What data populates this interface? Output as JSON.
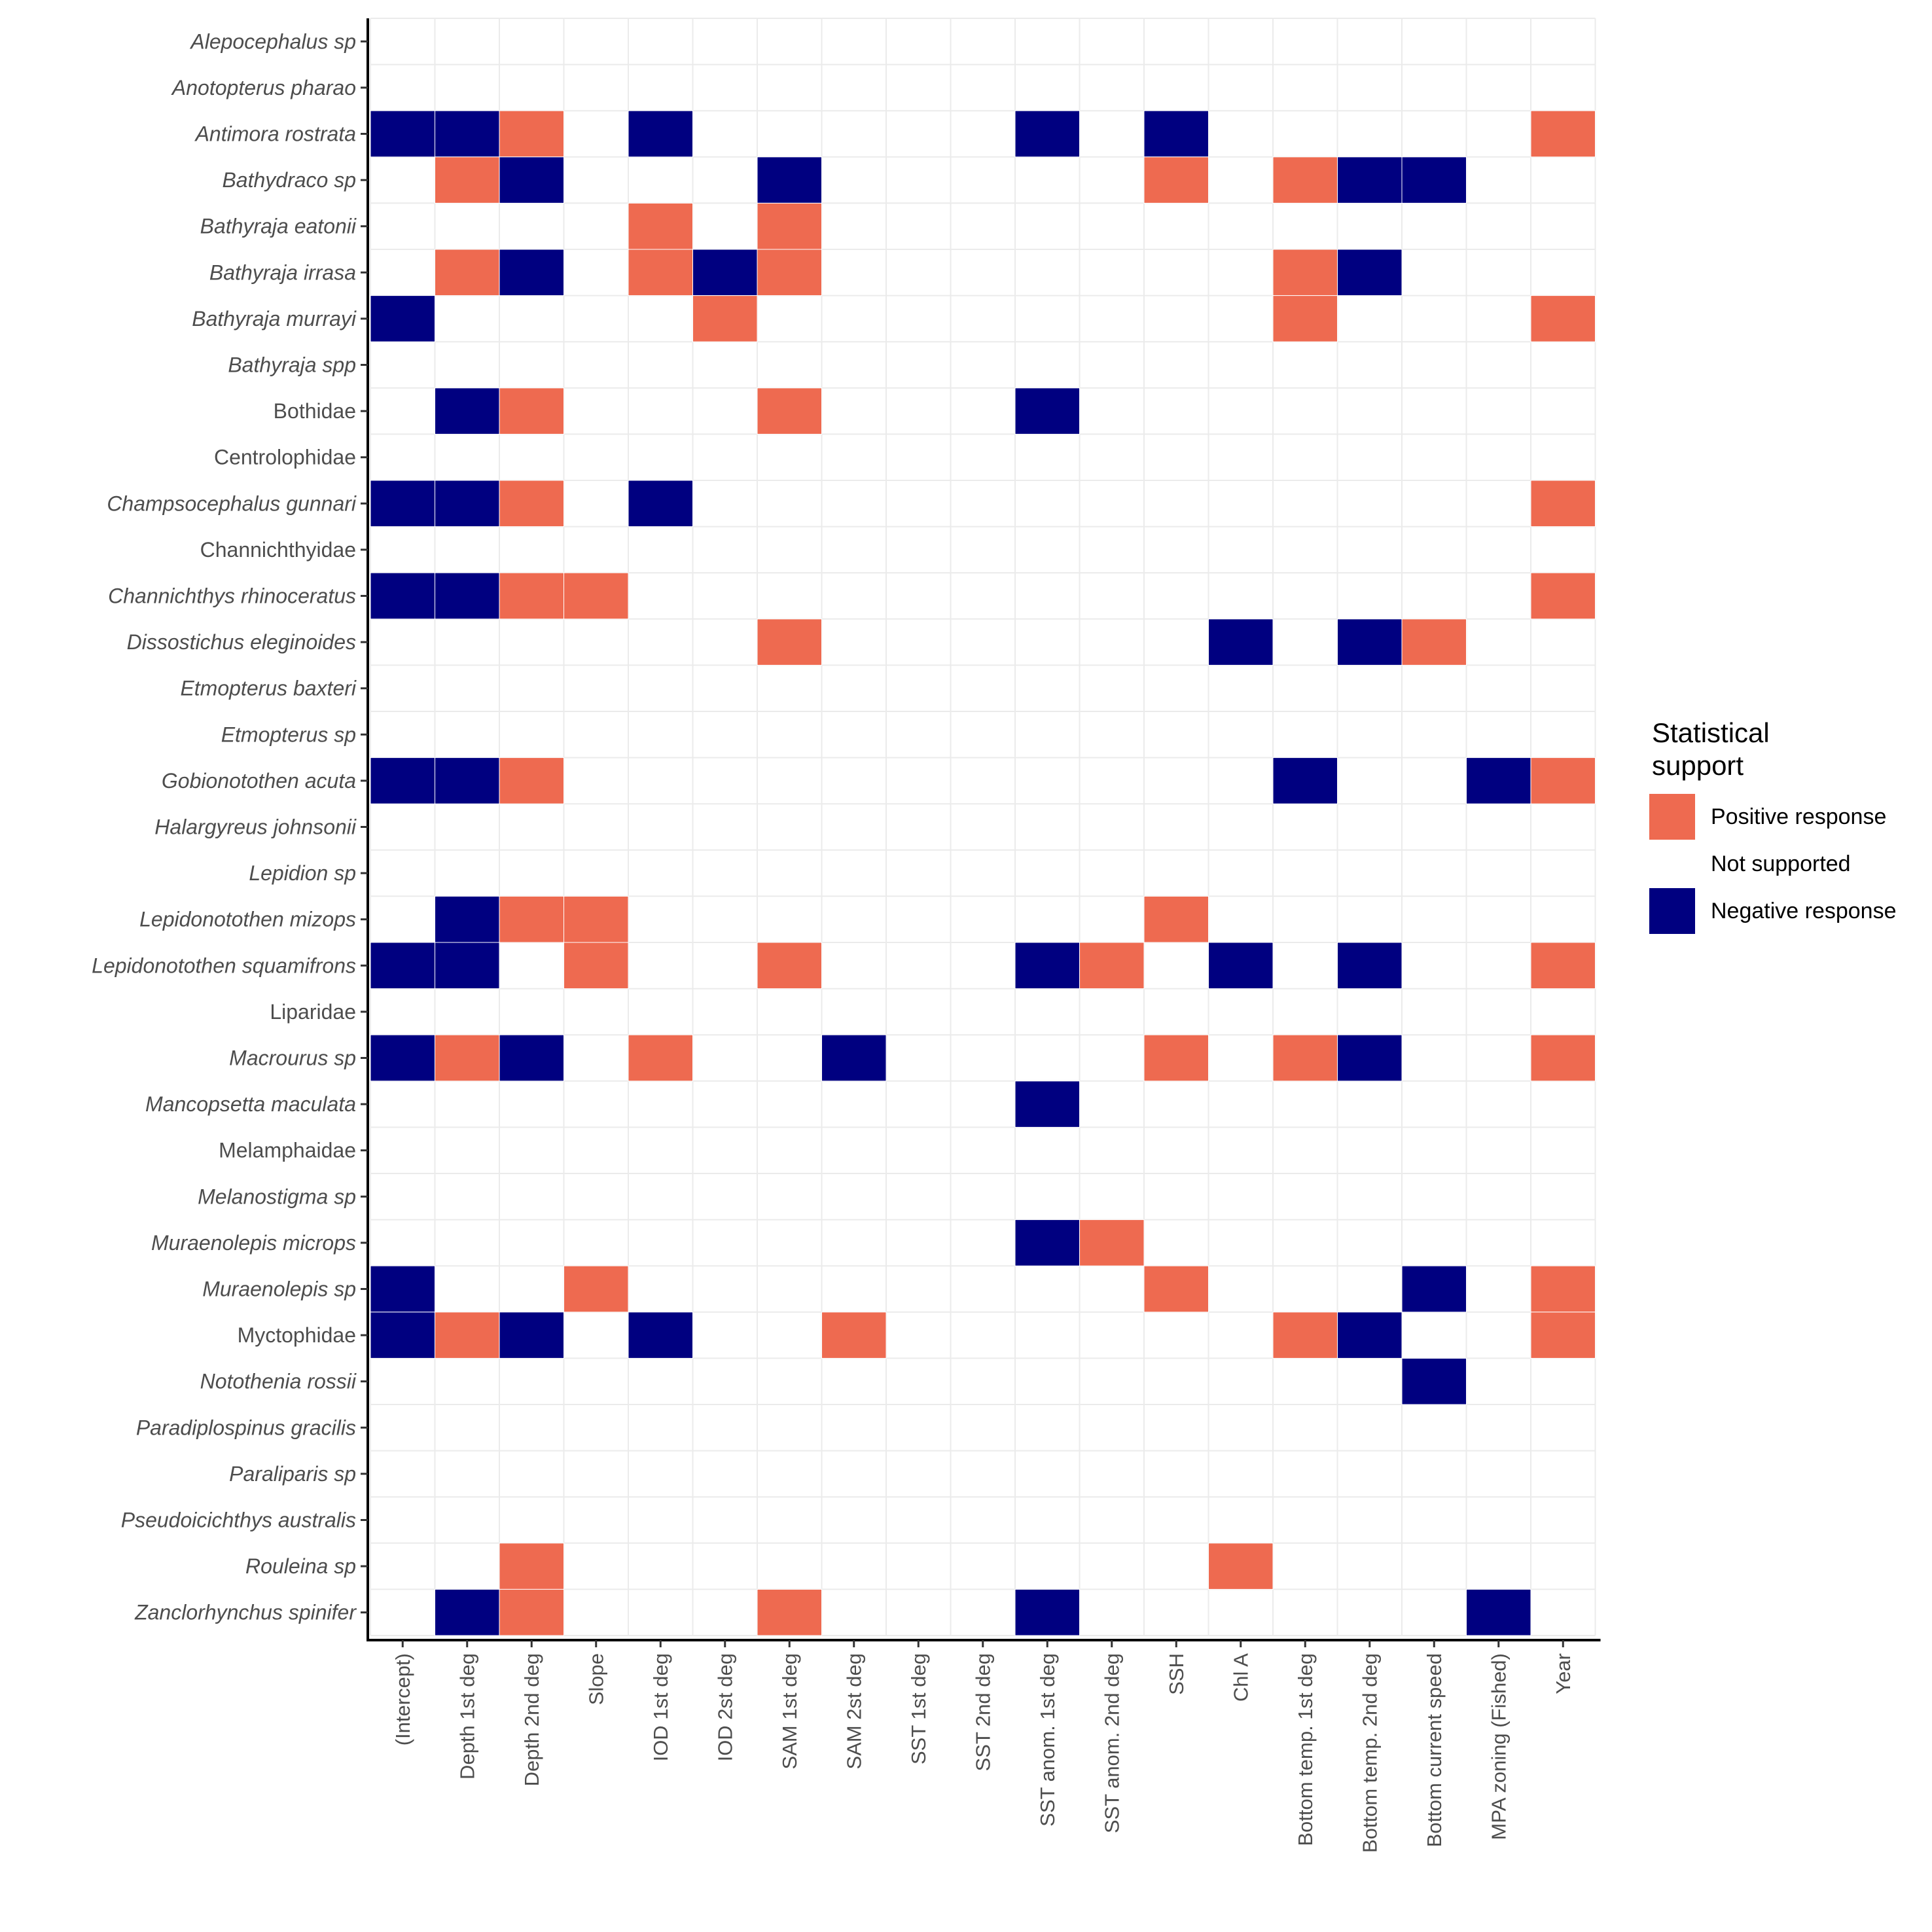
{
  "chart_data": {
    "type": "heatmap",
    "title": "",
    "xlabel": "",
    "ylabel": "",
    "x_categories": [
      "(Intercept)",
      "Depth 1st deg",
      "Depth 2nd deg",
      "Slope",
      "IOD 1st deg",
      "IOD 2st deg",
      "SAM 1st deg",
      "SAM 2st deg",
      "SST 1st deg",
      "SST 2nd deg",
      "SST anom. 1st deg",
      "SST anom. 2nd deg",
      "SSH",
      "Chl A",
      "Bottom temp. 1st deg",
      "Bottom temp. 2nd deg",
      "Bottom current speed",
      "MPA zoning (Fished)",
      "Year"
    ],
    "y_categories": [
      {
        "name": "Alepocephalus sp",
        "italic": true
      },
      {
        "name": "Anotopterus pharao",
        "italic": true
      },
      {
        "name": "Antimora rostrata",
        "italic": true
      },
      {
        "name": "Bathydraco sp",
        "italic": true
      },
      {
        "name": "Bathyraja eatonii",
        "italic": true
      },
      {
        "name": "Bathyraja irrasa",
        "italic": true
      },
      {
        "name": "Bathyraja murrayi",
        "italic": true
      },
      {
        "name": "Bathyraja spp",
        "italic": true
      },
      {
        "name": "Bothidae",
        "italic": false
      },
      {
        "name": "Centrolophidae",
        "italic": false
      },
      {
        "name": "Champsocephalus gunnari",
        "italic": true
      },
      {
        "name": "Channichthyidae",
        "italic": false
      },
      {
        "name": "Channichthys rhinoceratus",
        "italic": true
      },
      {
        "name": "Dissostichus eleginoides",
        "italic": true
      },
      {
        "name": "Etmopterus baxteri",
        "italic": true
      },
      {
        "name": "Etmopterus sp",
        "italic": true
      },
      {
        "name": "Gobionotothen acuta",
        "italic": true
      },
      {
        "name": "Halargyreus johnsonii",
        "italic": true
      },
      {
        "name": "Lepidion sp",
        "italic": true
      },
      {
        "name": "Lepidonotothen mizops",
        "italic": true
      },
      {
        "name": "Lepidonotothen squamifrons",
        "italic": true
      },
      {
        "name": "Liparidae",
        "italic": false
      },
      {
        "name": "Macrourus sp",
        "italic": true
      },
      {
        "name": "Mancopsetta maculata",
        "italic": true
      },
      {
        "name": "Melamphaidae",
        "italic": false
      },
      {
        "name": "Melanostigma sp",
        "italic": true
      },
      {
        "name": "Muraenolepis microps",
        "italic": true
      },
      {
        "name": "Muraenolepis sp",
        "italic": true
      },
      {
        "name": "Myctophidae",
        "italic": false
      },
      {
        "name": "Notothenia rossii",
        "italic": true
      },
      {
        "name": "Paradiplospinus gracilis",
        "italic": true
      },
      {
        "name": "Paraliparis sp",
        "italic": true
      },
      {
        "name": "Pseudoicichthys australis",
        "italic": true
      },
      {
        "name": "Rouleina sp",
        "italic": true
      },
      {
        "name": "Zanclorhynchus spinifer",
        "italic": true
      }
    ],
    "value_codes": {
      "1": "Positive response",
      "0": "Not supported",
      "-1": "Negative response"
    },
    "values": [
      [
        0,
        0,
        0,
        0,
        0,
        0,
        0,
        0,
        0,
        0,
        0,
        0,
        0,
        0,
        0,
        0,
        0,
        0,
        0
      ],
      [
        0,
        0,
        0,
        0,
        0,
        0,
        0,
        0,
        0,
        0,
        0,
        0,
        0,
        0,
        0,
        0,
        0,
        0,
        0
      ],
      [
        -1,
        -1,
        1,
        0,
        -1,
        0,
        0,
        0,
        0,
        0,
        -1,
        0,
        -1,
        0,
        0,
        0,
        0,
        0,
        1
      ],
      [
        0,
        1,
        -1,
        0,
        0,
        0,
        -1,
        0,
        0,
        0,
        0,
        0,
        1,
        0,
        1,
        -1,
        -1,
        0,
        0
      ],
      [
        0,
        0,
        0,
        0,
        1,
        0,
        1,
        0,
        0,
        0,
        0,
        0,
        0,
        0,
        0,
        0,
        0,
        0,
        0
      ],
      [
        0,
        1,
        -1,
        0,
        1,
        -1,
        1,
        0,
        0,
        0,
        0,
        0,
        0,
        0,
        1,
        -1,
        0,
        0,
        0
      ],
      [
        -1,
        0,
        0,
        0,
        0,
        1,
        0,
        0,
        0,
        0,
        0,
        0,
        0,
        0,
        1,
        0,
        0,
        0,
        1
      ],
      [
        0,
        0,
        0,
        0,
        0,
        0,
        0,
        0,
        0,
        0,
        0,
        0,
        0,
        0,
        0,
        0,
        0,
        0,
        0
      ],
      [
        0,
        -1,
        1,
        0,
        0,
        0,
        1,
        0,
        0,
        0,
        -1,
        0,
        0,
        0,
        0,
        0,
        0,
        0,
        0
      ],
      [
        0,
        0,
        0,
        0,
        0,
        0,
        0,
        0,
        0,
        0,
        0,
        0,
        0,
        0,
        0,
        0,
        0,
        0,
        0
      ],
      [
        -1,
        -1,
        1,
        0,
        -1,
        0,
        0,
        0,
        0,
        0,
        0,
        0,
        0,
        0,
        0,
        0,
        0,
        0,
        1
      ],
      [
        0,
        0,
        0,
        0,
        0,
        0,
        0,
        0,
        0,
        0,
        0,
        0,
        0,
        0,
        0,
        0,
        0,
        0,
        0
      ],
      [
        -1,
        -1,
        1,
        1,
        0,
        0,
        0,
        0,
        0,
        0,
        0,
        0,
        0,
        0,
        0,
        0,
        0,
        0,
        1
      ],
      [
        0,
        0,
        0,
        0,
        0,
        0,
        1,
        0,
        0,
        0,
        0,
        0,
        0,
        -1,
        0,
        -1,
        1,
        0,
        0
      ],
      [
        0,
        0,
        0,
        0,
        0,
        0,
        0,
        0,
        0,
        0,
        0,
        0,
        0,
        0,
        0,
        0,
        0,
        0,
        0
      ],
      [
        0,
        0,
        0,
        0,
        0,
        0,
        0,
        0,
        0,
        0,
        0,
        0,
        0,
        0,
        0,
        0,
        0,
        0,
        0
      ],
      [
        -1,
        -1,
        1,
        0,
        0,
        0,
        0,
        0,
        0,
        0,
        0,
        0,
        0,
        0,
        -1,
        0,
        0,
        -1,
        1
      ],
      [
        0,
        0,
        0,
        0,
        0,
        0,
        0,
        0,
        0,
        0,
        0,
        0,
        0,
        0,
        0,
        0,
        0,
        0,
        0
      ],
      [
        0,
        0,
        0,
        0,
        0,
        0,
        0,
        0,
        0,
        0,
        0,
        0,
        0,
        0,
        0,
        0,
        0,
        0,
        0
      ],
      [
        0,
        -1,
        1,
        1,
        0,
        0,
        0,
        0,
        0,
        0,
        0,
        0,
        1,
        0,
        0,
        0,
        0,
        0,
        0
      ],
      [
        -1,
        -1,
        0,
        1,
        0,
        0,
        1,
        0,
        0,
        0,
        -1,
        1,
        0,
        -1,
        0,
        -1,
        0,
        0,
        1
      ],
      [
        0,
        0,
        0,
        0,
        0,
        0,
        0,
        0,
        0,
        0,
        0,
        0,
        0,
        0,
        0,
        0,
        0,
        0,
        0
      ],
      [
        -1,
        1,
        -1,
        0,
        1,
        0,
        0,
        -1,
        0,
        0,
        0,
        0,
        1,
        0,
        1,
        -1,
        0,
        0,
        1
      ],
      [
        0,
        0,
        0,
        0,
        0,
        0,
        0,
        0,
        0,
        0,
        -1,
        0,
        0,
        0,
        0,
        0,
        0,
        0,
        0
      ],
      [
        0,
        0,
        0,
        0,
        0,
        0,
        0,
        0,
        0,
        0,
        0,
        0,
        0,
        0,
        0,
        0,
        0,
        0,
        0
      ],
      [
        0,
        0,
        0,
        0,
        0,
        0,
        0,
        0,
        0,
        0,
        0,
        0,
        0,
        0,
        0,
        0,
        0,
        0,
        0
      ],
      [
        0,
        0,
        0,
        0,
        0,
        0,
        0,
        0,
        0,
        0,
        -1,
        1,
        0,
        0,
        0,
        0,
        0,
        0,
        0
      ],
      [
        -1,
        0,
        0,
        1,
        0,
        0,
        0,
        0,
        0,
        0,
        0,
        0,
        1,
        0,
        0,
        0,
        -1,
        0,
        1
      ],
      [
        -1,
        1,
        -1,
        0,
        -1,
        0,
        0,
        1,
        0,
        0,
        0,
        0,
        0,
        0,
        1,
        -1,
        0,
        0,
        1
      ],
      [
        0,
        0,
        0,
        0,
        0,
        0,
        0,
        0,
        0,
        0,
        0,
        0,
        0,
        0,
        0,
        0,
        -1,
        0,
        0
      ],
      [
        0,
        0,
        0,
        0,
        0,
        0,
        0,
        0,
        0,
        0,
        0,
        0,
        0,
        0,
        0,
        0,
        0,
        0,
        0
      ],
      [
        0,
        0,
        0,
        0,
        0,
        0,
        0,
        0,
        0,
        0,
        0,
        0,
        0,
        0,
        0,
        0,
        0,
        0,
        0
      ],
      [
        0,
        0,
        0,
        0,
        0,
        0,
        0,
        0,
        0,
        0,
        0,
        0,
        0,
        0,
        0,
        0,
        0,
        0,
        0
      ],
      [
        0,
        0,
        1,
        0,
        0,
        0,
        0,
        0,
        0,
        0,
        0,
        0,
        0,
        1,
        0,
        0,
        0,
        0,
        0
      ],
      [
        0,
        -1,
        1,
        0,
        0,
        0,
        1,
        0,
        0,
        0,
        -1,
        0,
        0,
        0,
        0,
        0,
        0,
        -1,
        0
      ]
    ],
    "colors": {
      "positive": "#EE6A50",
      "not_supported": "#FFFFFF",
      "negative": "#000080",
      "grid": "#EBEBEB",
      "axis": "#000000"
    },
    "grid": true,
    "legend": {
      "title": "Statistical support",
      "placement": "right",
      "entries": [
        {
          "label": "Positive response",
          "color": "#EE6A50"
        },
        {
          "label": "Not supported",
          "color": "#FFFFFF"
        },
        {
          "label": "Negative response",
          "color": "#000080"
        }
      ]
    }
  }
}
